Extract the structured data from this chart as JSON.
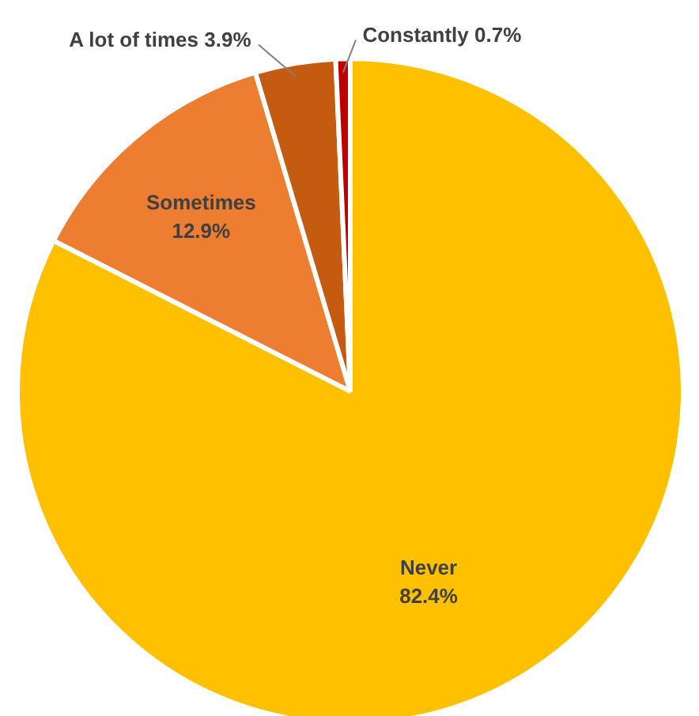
{
  "chart_data": {
    "type": "pie",
    "categories": [
      "Never",
      "Sometimes",
      "A lot of times",
      "Constantly"
    ],
    "values": [
      82.4,
      12.9,
      3.9,
      0.7
    ],
    "value_labels": [
      "82.4%",
      "12.9%",
      "3.9%",
      "0.7%"
    ],
    "colors": [
      "#ffc000",
      "#ed7d31",
      "#c55a11",
      "#c00000"
    ]
  }
}
